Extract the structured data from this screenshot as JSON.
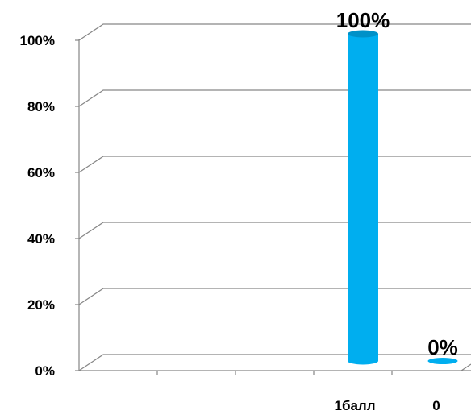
{
  "chart_data": {
    "type": "bar",
    "style": "3d-cylinder",
    "categories": [
      "1балл",
      "0"
    ],
    "values": [
      100,
      0
    ],
    "data_labels": [
      "100%",
      "0%"
    ],
    "y_tick_labels": [
      "0%",
      "20%",
      "40%",
      "60%",
      "80%",
      "100%"
    ],
    "ylim": [
      0,
      100
    ],
    "grid": true,
    "bar_color": "#00aeef",
    "bar_shade_color": "#0091c8",
    "grid_color": "#868686"
  }
}
